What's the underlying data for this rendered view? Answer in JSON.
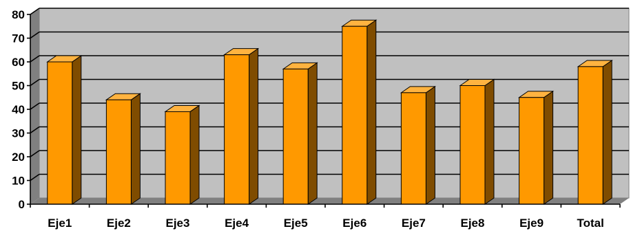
{
  "chart_data": {
    "type": "bar",
    "categories": [
      "Eje1",
      "Eje2",
      "Eje3",
      "Eje4",
      "Eje5",
      "Eje6",
      "Eje7",
      "Eje8",
      "Eje9",
      "Total"
    ],
    "values": [
      60,
      44,
      39,
      63,
      57,
      75,
      47,
      50,
      45,
      58
    ],
    "title": "",
    "xlabel": "",
    "ylabel": "",
    "ylim": [
      0,
      80
    ],
    "yticks": [
      0,
      10,
      20,
      30,
      40,
      50,
      60,
      70,
      80
    ],
    "grid": true,
    "legend": "none",
    "style": "3d-column",
    "colors": {
      "bar_front": "#FF9900",
      "bar_side": "#7F4C00",
      "bar_top": "#FFB340",
      "plot_wall": "#C0C0C0",
      "plot_floor": "#808080",
      "gridline": "#000000",
      "axis": "#000000"
    }
  }
}
